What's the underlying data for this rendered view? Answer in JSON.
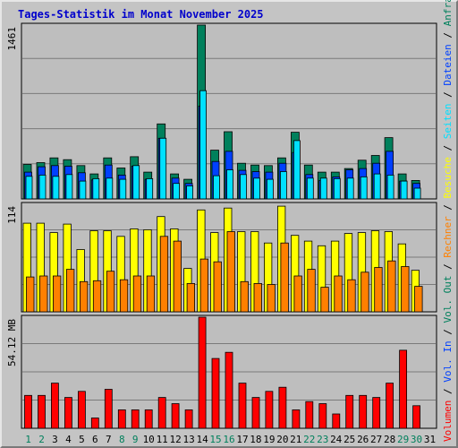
{
  "title": "Tages-Statistik im Monat November 2025",
  "legend": {
    "anfragen": "Anfragen",
    "dateien": "Dateien",
    "seiten": "Seiten",
    "besuche": "Besuche",
    "rechner": "Rechner",
    "vol": "Volumen",
    "vol_in": "Vol. In",
    "vol_out": "Vol. Out",
    "sep": " / "
  },
  "colors": {
    "anfragen": "#00805c",
    "dateien": "#0040ff",
    "seiten": "#00e0ff",
    "besuche": "#ffff00",
    "rechner": "#ff8000",
    "volumen": "#ff0000",
    "day_weekday": "#000000",
    "day_weekend": "#00805c",
    "panel_bg": "#bebebe",
    "grid": "#7a7a7a"
  },
  "chart_data": {
    "type": "bar",
    "x_label_weekend": [
      1,
      2,
      8,
      9,
      15,
      16,
      22,
      23,
      29,
      30
    ],
    "categories": [
      "1",
      "2",
      "3",
      "4",
      "5",
      "6",
      "7",
      "8",
      "9",
      "10",
      "11",
      "12",
      "13",
      "14",
      "15",
      "16",
      "17",
      "18",
      "19",
      "20",
      "21",
      "22",
      "23",
      "24",
      "25",
      "26",
      "27",
      "28",
      "29",
      "30",
      "31"
    ],
    "panels": [
      {
        "scale_label": "1461",
        "ymax": 1461,
        "series": [
          {
            "name": "Anfragen",
            "values": [
              290,
              305,
              345,
              330,
              280,
              210,
              345,
              260,
              355,
              225,
              630,
              210,
              165,
              1461,
              410,
              565,
              300,
              285,
              280,
              345,
              560,
              285,
              225,
              225,
              255,
              325,
              365,
              515,
              210,
              155,
              0
            ]
          },
          {
            "name": "Dateien",
            "values": [
              225,
              270,
              280,
              275,
              220,
              160,
              285,
              200,
              275,
              165,
              510,
              175,
              130,
              780,
              315,
              400,
              240,
              230,
              225,
              300,
              390,
              205,
              155,
              185,
              245,
              255,
              300,
              400,
              150,
              130,
              0
            ]
          },
          {
            "name": "Seiten",
            "values": [
              190,
              200,
              190,
              205,
              150,
              170,
              175,
              165,
              280,
              170,
              510,
              130,
              110,
              910,
              195,
              245,
              205,
              175,
              165,
              230,
              490,
              175,
              175,
              170,
              175,
              185,
              210,
              200,
              150,
              90,
              0
            ]
          }
        ]
      },
      {
        "scale_label": "114",
        "ymax": 114,
        "series": [
          {
            "name": "Besuche",
            "values": [
              94,
              94,
              84,
              93,
              66,
              86,
              86,
              80,
              88,
              87,
              101,
              88,
              46,
              108,
              84,
              110,
              85,
              85,
              73,
              112,
              81,
              75,
              70,
              75,
              83,
              84,
              86,
              85,
              72,
              44,
              0
            ]
          },
          {
            "name": "Rechner",
            "values": [
              37,
              38,
              38,
              45,
              32,
              33,
              43,
              34,
              38,
              38,
              80,
              75,
              30,
              56,
              53,
              85,
              32,
              30,
              29,
              73,
              38,
              45,
              26,
              38,
              34,
              42,
              47,
              54,
              48,
              27,
              0
            ]
          }
        ]
      },
      {
        "scale_label": "54.12 MB",
        "ymax": 54.12,
        "series": [
          {
            "name": "Volumen",
            "values": [
              16,
              16,
              22,
              15,
              18,
              5,
              19,
              9,
              9,
              9,
              15,
              12,
              9,
              54.12,
              34,
              37,
              22,
              15,
              18,
              20,
              9,
              13,
              12,
              7,
              16,
              16,
              15,
              22,
              38,
              11,
              0
            ]
          }
        ]
      }
    ]
  }
}
